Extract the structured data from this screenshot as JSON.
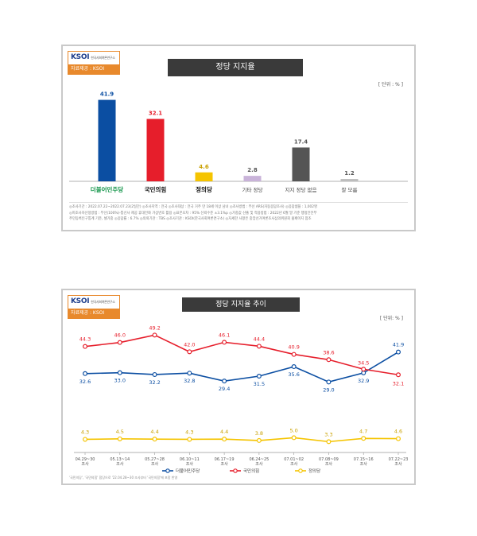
{
  "source": {
    "logo": "KSOI",
    "logo_sub": "한국사회여론연구소",
    "label": "자료제공 : KSOI"
  },
  "bar_panel": {
    "unit": "[ 단위 : % ]"
  },
  "line_panel": {
    "unit": "[ 단위: % ]",
    "footnote": "'국민의당', '국민의힘' 합당으로 '22.04.28~30 조사부터 '국민의힘'에 포함 반영"
  },
  "survey_notes": [
    "◎조사기간 : 2022.07.22~2022.07.23(2일간)   ◎조사지역 : 전국   ◎조사대상 : 전국 거주 만 18세 이상 남녀   ◎조사방법 : 무선 ARS(자동응답조사)   ◎응답샘플 : 1,002명",
    "◎피조사자선정방법 : 무선(100%)-통신사 제공 휴대전화 가상번호 활용   ◎표본오차 : 95% 신뢰수준 ±3.1%p   ◎가중값 산출 및 적용방법 : 2022년 6월 말 기준 행정안전부",
    "주민등록인구통계 기준, 셀가중   ◎응답률 : 6.7%   ◎의뢰기관 : TBS   ◎조사기관 : KSOI(한국사회여론연구소)   ◎자세한 사항은 중앙선거여론조사심의위원회 홈페이지 참조"
  ],
  "colors": {
    "minjoo": "#0b4ea2",
    "ppp": "#e61e2b",
    "justice": "#f5c400",
    "other": "#c9b3d9",
    "none": "#555555",
    "dontknow": "#bdbdbd"
  },
  "chart_data": [
    {
      "type": "bar",
      "title": "정당 지지율",
      "categories": [
        "더불어민주당",
        "국민의힘",
        "정의당",
        "기타 정당",
        "지지 정당 없음",
        "잘 모름"
      ],
      "values": [
        41.9,
        32.1,
        4.6,
        2.8,
        17.4,
        1.2
      ],
      "ylim": [
        0,
        45
      ],
      "grid": false,
      "legend": "none"
    },
    {
      "type": "line",
      "title": "정당 지지율 추이",
      "categories": [
        "04.29~30 조사",
        "05.13~14 조사",
        "05.27~28 조사",
        "06.10~11 조사",
        "06.17~19 조사",
        "06.24~25 조사",
        "07.01~02 조사",
        "07.08~09 조사",
        "07.15~16 조사",
        "07.22~23 조사"
      ],
      "series": [
        {
          "name": "더불어민주당",
          "values": [
            32.6,
            33.0,
            32.2,
            32.8,
            29.4,
            31.5,
            35.6,
            29.0,
            32.9,
            41.9
          ]
        },
        {
          "name": "국민의힘",
          "values": [
            44.3,
            46.0,
            49.2,
            42.0,
            46.1,
            44.4,
            40.9,
            38.6,
            34.5,
            32.1
          ]
        },
        {
          "name": "정의당",
          "values": [
            4.3,
            4.5,
            4.4,
            4.3,
            4.4,
            3.8,
            5.0,
            3.3,
            4.7,
            4.6
          ]
        }
      ],
      "ylim": [
        0,
        55
      ],
      "grid": false,
      "legend": "bottom-center"
    }
  ]
}
